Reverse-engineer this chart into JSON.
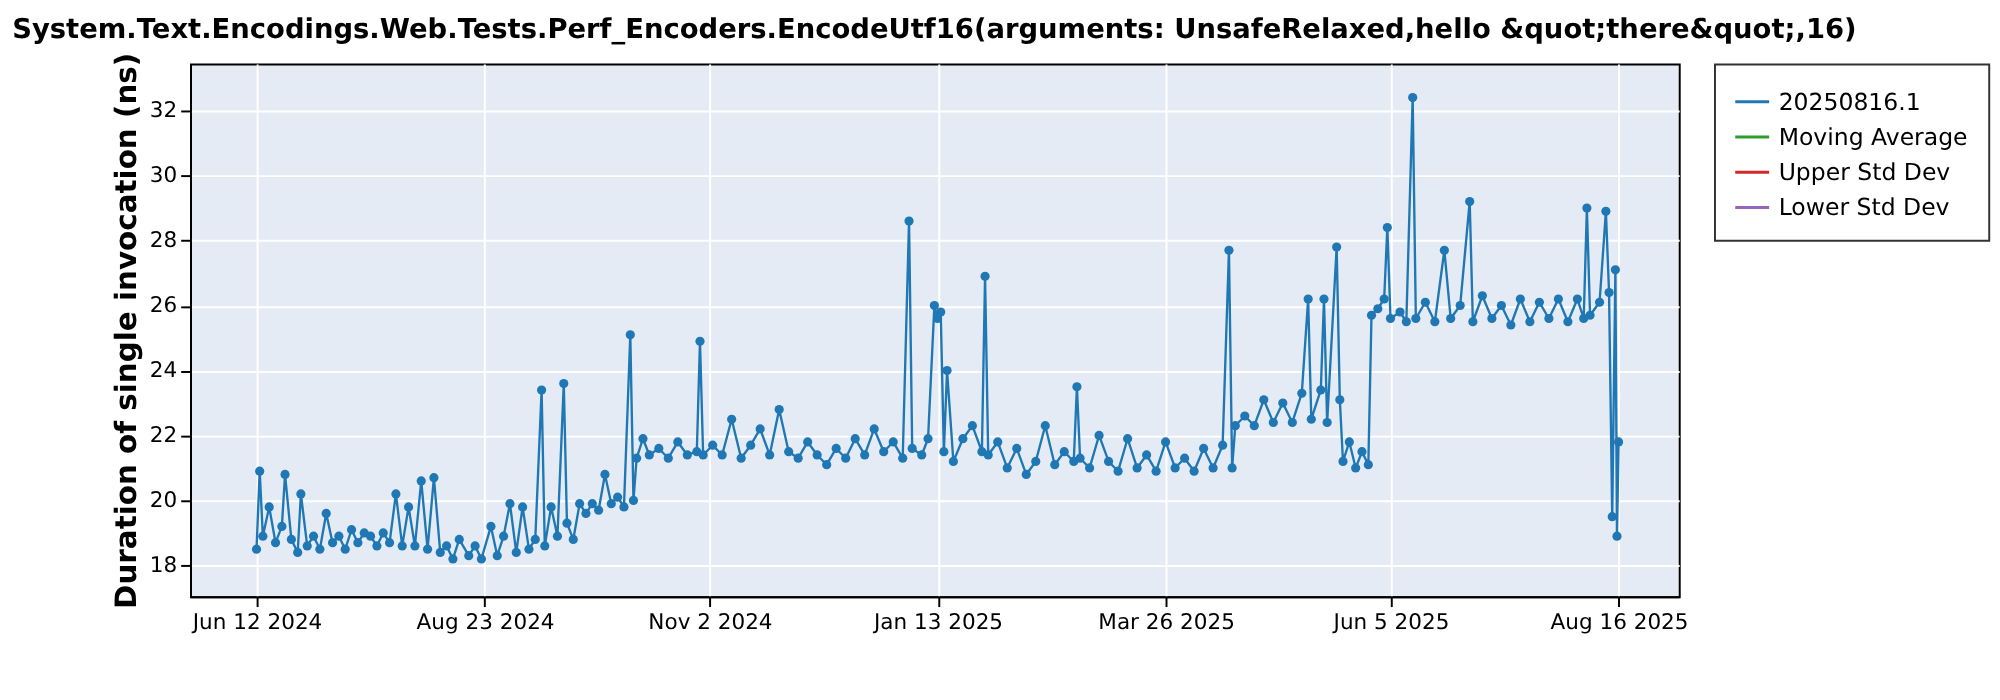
{
  "chart_data": {
    "type": "line",
    "title": "System.Text.Encodings.Web.Tests.Perf_Encoders.EncodeUtf16(arguments: UnsafeRelaxed,hello &quot;there&quot;,16)",
    "ylabel": "Duration of single invocation (ns)",
    "x": [
      "2024-06-12",
      "2024-06-13",
      "2024-06-14",
      "2024-06-16",
      "2024-06-18",
      "2024-06-20",
      "2024-06-21",
      "2024-06-23",
      "2024-06-25",
      "2024-06-26",
      "2024-06-28",
      "2024-06-30",
      "2024-07-02",
      "2024-07-04",
      "2024-07-06",
      "2024-07-08",
      "2024-07-10",
      "2024-07-12",
      "2024-07-14",
      "2024-07-16",
      "2024-07-18",
      "2024-07-20",
      "2024-07-22",
      "2024-07-24",
      "2024-07-26",
      "2024-07-28",
      "2024-07-30",
      "2024-08-01",
      "2024-08-03",
      "2024-08-05",
      "2024-08-07",
      "2024-08-09",
      "2024-08-11",
      "2024-08-13",
      "2024-08-15",
      "2024-08-18",
      "2024-08-20",
      "2024-08-22",
      "2024-08-25",
      "2024-08-27",
      "2024-08-29",
      "2024-08-31",
      "2024-09-02",
      "2024-09-04",
      "2024-09-06",
      "2024-09-08",
      "2024-09-10",
      "2024-09-11",
      "2024-09-13",
      "2024-09-15",
      "2024-09-17",
      "2024-09-18",
      "2024-09-20",
      "2024-09-22",
      "2024-09-24",
      "2024-09-26",
      "2024-09-28",
      "2024-09-30",
      "2024-10-02",
      "2024-10-04",
      "2024-10-06",
      "2024-10-08",
      "2024-10-09",
      "2024-10-10",
      "2024-10-12",
      "2024-10-14",
      "2024-10-17",
      "2024-10-20",
      "2024-10-23",
      "2024-10-26",
      "2024-10-29",
      "2024-10-30",
      "2024-10-31",
      "2024-11-03",
      "2024-11-06",
      "2024-11-09",
      "2024-11-12",
      "2024-11-15",
      "2024-11-18",
      "2024-11-21",
      "2024-11-24",
      "2024-11-27",
      "2024-11-30",
      "2024-12-03",
      "2024-12-06",
      "2024-12-09",
      "2024-12-12",
      "2024-12-15",
      "2024-12-18",
      "2024-12-21",
      "2024-12-24",
      "2024-12-27",
      "2024-12-30",
      "2025-01-02",
      "2025-01-04",
      "2025-01-05",
      "2025-01-08",
      "2025-01-10",
      "2025-01-12",
      "2025-01-13",
      "2025-01-14",
      "2025-01-15",
      "2025-01-16",
      "2025-01-18",
      "2025-01-21",
      "2025-01-24",
      "2025-01-27",
      "2025-01-28",
      "2025-01-29",
      "2025-02-01",
      "2025-02-04",
      "2025-02-07",
      "2025-02-10",
      "2025-02-13",
      "2025-02-16",
      "2025-02-19",
      "2025-02-22",
      "2025-02-25",
      "2025-02-26",
      "2025-02-27",
      "2025-03-02",
      "2025-03-05",
      "2025-03-08",
      "2025-03-11",
      "2025-03-14",
      "2025-03-17",
      "2025-03-20",
      "2025-03-23",
      "2025-03-26",
      "2025-03-29",
      "2025-04-01",
      "2025-04-04",
      "2025-04-07",
      "2025-04-10",
      "2025-04-13",
      "2025-04-15",
      "2025-04-16",
      "2025-04-17",
      "2025-04-20",
      "2025-04-23",
      "2025-04-26",
      "2025-04-29",
      "2025-05-02",
      "2025-05-05",
      "2025-05-08",
      "2025-05-10",
      "2025-05-11",
      "2025-05-14",
      "2025-05-15",
      "2025-05-16",
      "2025-05-19",
      "2025-05-20",
      "2025-05-21",
      "2025-05-23",
      "2025-05-25",
      "2025-05-27",
      "2025-05-29",
      "2025-05-30",
      "2025-06-01",
      "2025-06-03",
      "2025-06-04",
      "2025-06-05",
      "2025-06-08",
      "2025-06-10",
      "2025-06-12",
      "2025-06-13",
      "2025-06-16",
      "2025-06-19",
      "2025-06-22",
      "2025-06-24",
      "2025-06-27",
      "2025-06-30",
      "2025-07-01",
      "2025-07-04",
      "2025-07-07",
      "2025-07-10",
      "2025-07-13",
      "2025-07-16",
      "2025-07-19",
      "2025-07-22",
      "2025-07-25",
      "2025-07-28",
      "2025-07-31",
      "2025-08-03",
      "2025-08-05",
      "2025-08-06",
      "2025-08-07",
      "2025-08-10",
      "2025-08-12",
      "2025-08-13",
      "2025-08-14",
      "2025-08-15",
      "2025-08-15T12:00",
      "2025-08-16"
    ],
    "series": [
      {
        "name": "20250816.1",
        "color": "#1f77b4",
        "values": [
          18.5,
          20.9,
          18.9,
          19.8,
          18.7,
          19.2,
          20.8,
          18.8,
          18.4,
          20.2,
          18.6,
          18.9,
          18.5,
          19.6,
          18.7,
          18.9,
          18.5,
          19.1,
          18.7,
          19.0,
          18.9,
          18.6,
          19.0,
          18.7,
          20.2,
          18.6,
          19.8,
          18.6,
          20.6,
          18.5,
          20.7,
          18.4,
          18.6,
          18.2,
          18.8,
          18.3,
          18.6,
          18.2,
          19.2,
          18.3,
          18.9,
          19.9,
          18.4,
          19.8,
          18.5,
          18.8,
          23.4,
          18.6,
          19.8,
          18.9,
          23.6,
          19.3,
          18.8,
          19.9,
          19.6,
          19.9,
          19.7,
          20.8,
          19.9,
          20.1,
          19.8,
          25.1,
          20.0,
          21.3,
          21.9,
          21.4,
          21.6,
          21.3,
          21.8,
          21.4,
          21.5,
          24.9,
          21.4,
          21.7,
          21.4,
          22.5,
          21.3,
          21.7,
          22.2,
          21.4,
          22.8,
          21.5,
          21.3,
          21.8,
          21.4,
          21.1,
          21.6,
          21.3,
          21.9,
          21.4,
          22.2,
          21.5,
          21.8,
          21.3,
          28.6,
          21.6,
          21.4,
          21.9,
          26.0,
          25.6,
          25.8,
          21.5,
          24.0,
          21.2,
          21.9,
          22.3,
          21.5,
          26.9,
          21.4,
          21.8,
          21.0,
          21.6,
          20.8,
          21.2,
          22.3,
          21.1,
          21.5,
          21.2,
          23.5,
          21.3,
          21.0,
          22.0,
          21.2,
          20.9,
          21.9,
          21.0,
          21.4,
          20.9,
          21.8,
          21.0,
          21.3,
          20.9,
          21.6,
          21.0,
          21.7,
          27.7,
          21.0,
          22.3,
          22.6,
          22.3,
          23.1,
          22.4,
          23.0,
          22.4,
          23.3,
          26.2,
          22.5,
          23.4,
          26.2,
          22.4,
          27.8,
          23.1,
          21.2,
          21.8,
          21.0,
          21.5,
          21.1,
          25.7,
          25.9,
          26.2,
          28.4,
          25.6,
          25.8,
          25.5,
          32.4,
          25.6,
          26.1,
          25.5,
          27.7,
          25.6,
          26.0,
          29.2,
          25.5,
          26.3,
          25.6,
          26.0,
          25.4,
          26.2,
          25.5,
          26.1,
          25.6,
          26.2,
          25.5,
          26.2,
          25.6,
          29.0,
          25.7,
          26.1,
          28.9,
          26.4,
          19.5,
          27.1,
          18.9,
          21.8
        ]
      },
      {
        "name": "Moving Average",
        "color": "#2ca02c",
        "values": [
          null,
          null,
          null,
          null,
          null,
          null,
          null,
          null,
          null,
          null,
          null,
          null,
          null,
          null,
          null,
          null,
          null,
          null,
          null,
          null,
          null,
          null,
          null,
          null,
          null,
          null,
          null,
          null,
          null,
          null,
          null,
          null,
          null,
          null,
          null,
          null,
          null,
          null,
          null,
          null,
          null,
          null,
          null,
          null,
          null,
          null,
          null,
          null,
          null,
          null,
          null,
          null,
          null,
          null,
          null,
          null,
          null,
          null,
          null,
          null,
          null,
          null,
          null,
          null,
          null,
          null,
          null,
          null,
          null,
          null,
          null,
          null,
          null,
          null,
          null,
          null,
          null,
          null,
          null,
          null,
          null,
          null,
          null,
          null,
          null,
          null,
          null,
          null,
          null,
          null,
          null,
          null,
          null,
          null,
          null,
          null,
          null,
          null,
          null,
          null,
          null,
          null,
          null,
          null,
          null,
          null,
          null,
          null,
          null,
          null,
          null,
          null,
          null,
          null,
          null,
          null,
          null,
          null,
          null,
          null,
          null,
          null,
          null,
          null,
          null,
          null,
          null,
          null,
          null,
          null,
          null,
          null,
          null,
          null,
          null,
          null,
          null,
          null,
          null,
          null,
          null,
          null,
          null,
          null,
          null,
          null,
          null,
          null,
          null,
          null,
          null,
          null,
          null,
          null,
          null,
          null,
          null,
          null,
          null,
          null,
          null,
          null,
          null,
          null,
          null,
          null,
          null,
          null,
          null,
          null,
          null,
          null,
          null,
          null,
          null,
          null,
          null,
          null,
          null,
          null,
          null,
          null,
          null,
          null,
          null,
          null,
          null,
          null,
          null,
          null,
          null,
          null,
          null,
          null
        ]
      },
      {
        "name": "Upper Std Dev",
        "color": "#d62728",
        "values": [
          null,
          null,
          null,
          null,
          null,
          null,
          null,
          null,
          null,
          null,
          null,
          null,
          null,
          null,
          null,
          null,
          null,
          null,
          null,
          null,
          null,
          null,
          null,
          null,
          null,
          null,
          null,
          null,
          null,
          null,
          null,
          null,
          null,
          null,
          null,
          null,
          null,
          null,
          null,
          null,
          null,
          null,
          null,
          null,
          null,
          null,
          null,
          null,
          null,
          null,
          null,
          null,
          null,
          null,
          null,
          null,
          null,
          null,
          null,
          null,
          null,
          null,
          null,
          null,
          null,
          null,
          null,
          null,
          null,
          null,
          null,
          null,
          null,
          null,
          null,
          null,
          null,
          null,
          null,
          null,
          null,
          null,
          null,
          null,
          null,
          null,
          null,
          null,
          null,
          null,
          null,
          null,
          null,
          null,
          null,
          null,
          null,
          null,
          null,
          null,
          null,
          null,
          null,
          null,
          null,
          null,
          null,
          null,
          null,
          null,
          null,
          null,
          null,
          null,
          null,
          null,
          null,
          null,
          null,
          null,
          null,
          null,
          null,
          null,
          null,
          null,
          null,
          null,
          null,
          null,
          null,
          null,
          null,
          null,
          null,
          null,
          null,
          null,
          null,
          null,
          null,
          null,
          null,
          null,
          null,
          null,
          null,
          null,
          null,
          null,
          null,
          null,
          null,
          null,
          null,
          null,
          null,
          null,
          null,
          null,
          null,
          null,
          null,
          null,
          null,
          null,
          null,
          null,
          null,
          null,
          null,
          null,
          null,
          null,
          null,
          null,
          null,
          null,
          null,
          null,
          null,
          null,
          null,
          null,
          null,
          null,
          null,
          null,
          null,
          null,
          null,
          null,
          null,
          null
        ]
      },
      {
        "name": "Lower Std Dev",
        "color": "#9467bd",
        "values": [
          null,
          null,
          null,
          null,
          null,
          null,
          null,
          null,
          null,
          null,
          null,
          null,
          null,
          null,
          null,
          null,
          null,
          null,
          null,
          null,
          null,
          null,
          null,
          null,
          null,
          null,
          null,
          null,
          null,
          null,
          null,
          null,
          null,
          null,
          null,
          null,
          null,
          null,
          null,
          null,
          null,
          null,
          null,
          null,
          null,
          null,
          null,
          null,
          null,
          null,
          null,
          null,
          null,
          null,
          null,
          null,
          null,
          null,
          null,
          null,
          null,
          null,
          null,
          null,
          null,
          null,
          null,
          null,
          null,
          null,
          null,
          null,
          null,
          null,
          null,
          null,
          null,
          null,
          null,
          null,
          null,
          null,
          null,
          null,
          null,
          null,
          null,
          null,
          null,
          null,
          null,
          null,
          null,
          null,
          null,
          null,
          null,
          null,
          null,
          null,
          null,
          null,
          null,
          null,
          null,
          null,
          null,
          null,
          null,
          null,
          null,
          null,
          null,
          null,
          null,
          null,
          null,
          null,
          null,
          null,
          null,
          null,
          null,
          null,
          null,
          null,
          null,
          null,
          null,
          null,
          null,
          null,
          null,
          null,
          null,
          null,
          null,
          null,
          null,
          null,
          null,
          null,
          null,
          null,
          null,
          null,
          null,
          null,
          null,
          null,
          null,
          null,
          null,
          null,
          null,
          null,
          null,
          null,
          null,
          null,
          null,
          null,
          null,
          null,
          null,
          null,
          null,
          null,
          null,
          null,
          null,
          null,
          null,
          null,
          null,
          null,
          null,
          null,
          null,
          null,
          null,
          null,
          null,
          null,
          null,
          null,
          null,
          null,
          null,
          null,
          null,
          null,
          null,
          null
        ]
      }
    ],
    "xlim": [
      "2024-05-22",
      "2025-09-04"
    ],
    "xticks": [
      {
        "value": "2024-06-12",
        "label": "Jun 12 2024"
      },
      {
        "value": "2024-08-23",
        "label": "Aug 23 2024"
      },
      {
        "value": "2024-11-02",
        "label": "Nov 2 2024"
      },
      {
        "value": "2025-01-13",
        "label": "Jan 13 2025"
      },
      {
        "value": "2025-03-26",
        "label": "Mar 26 2025"
      },
      {
        "value": "2025-06-05",
        "label": "Jun 5 2025"
      },
      {
        "value": "2025-08-16",
        "label": "Aug 16 2025"
      }
    ],
    "ylim": [
      17.05,
      33.45
    ],
    "yticks": [
      18,
      20,
      22,
      24,
      26,
      28,
      30,
      32
    ],
    "grid": true,
    "legend": "right",
    "marker": "circle",
    "line_style": "solid"
  }
}
